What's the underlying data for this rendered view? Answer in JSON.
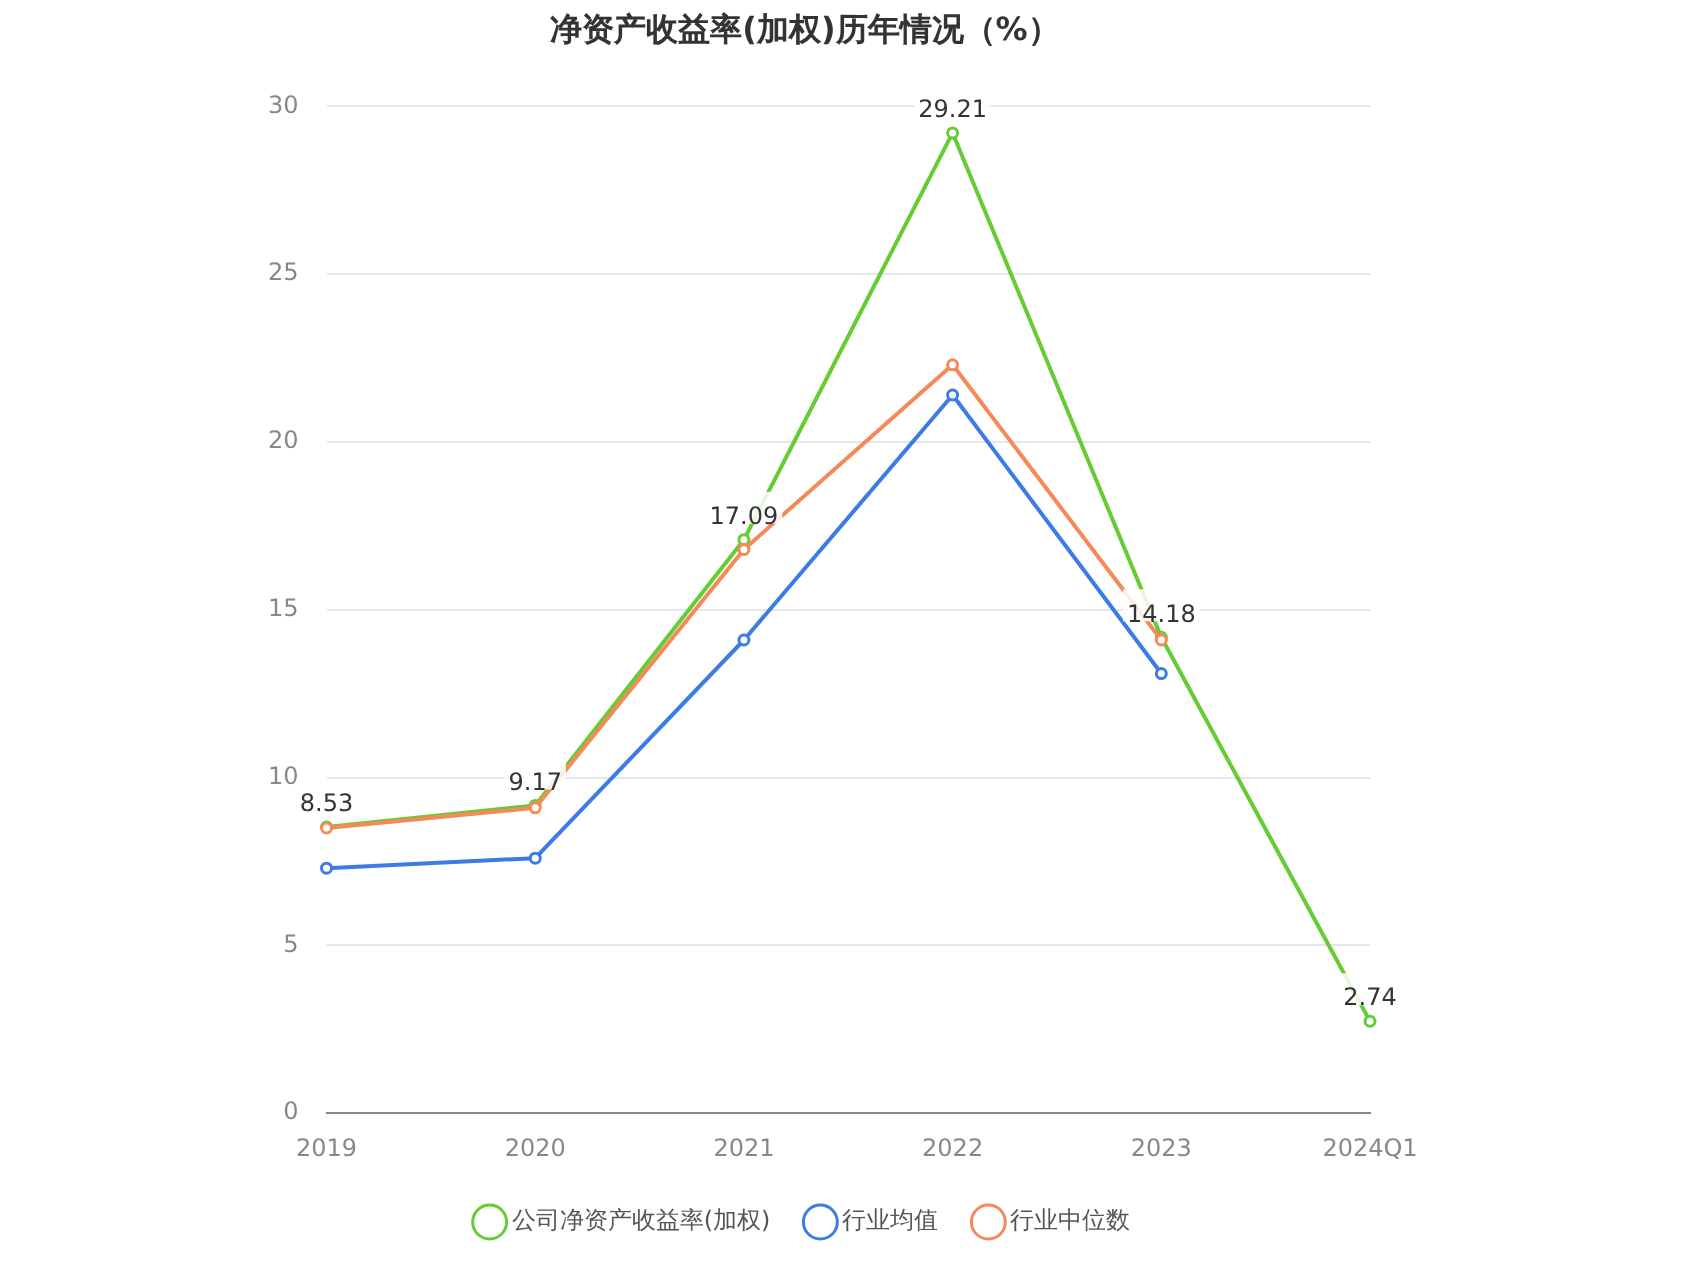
{
  "chart_data": {
    "type": "line",
    "title": "净资产收益率(加权)历年情况（%）",
    "categories": [
      "2019",
      "2020",
      "2021",
      "2022",
      "2023",
      "2024Q1"
    ],
    "series": [
      {
        "name": "公司净资产收益率(加权)",
        "color": "#66cc33",
        "values": [
          8.53,
          9.17,
          17.09,
          29.21,
          14.18,
          2.74
        ],
        "value_labels": [
          "8.53",
          "9.17",
          "17.09",
          "29.21",
          "14.18",
          "2.74"
        ]
      },
      {
        "name": "行业均值",
        "color": "#3d7be6",
        "values": [
          7.3,
          7.6,
          14.1,
          21.4,
          13.1,
          null
        ]
      },
      {
        "name": "行业中位数",
        "color": "#f5895a",
        "values": [
          8.5,
          9.1,
          16.8,
          22.3,
          14.1,
          null
        ]
      }
    ],
    "ylim": [
      0,
      30
    ],
    "yticks": [
      0,
      5,
      10,
      15,
      20,
      25,
      30
    ],
    "grid": "y",
    "legend": "bottom",
    "marker": "circle",
    "line_style": "solid"
  }
}
